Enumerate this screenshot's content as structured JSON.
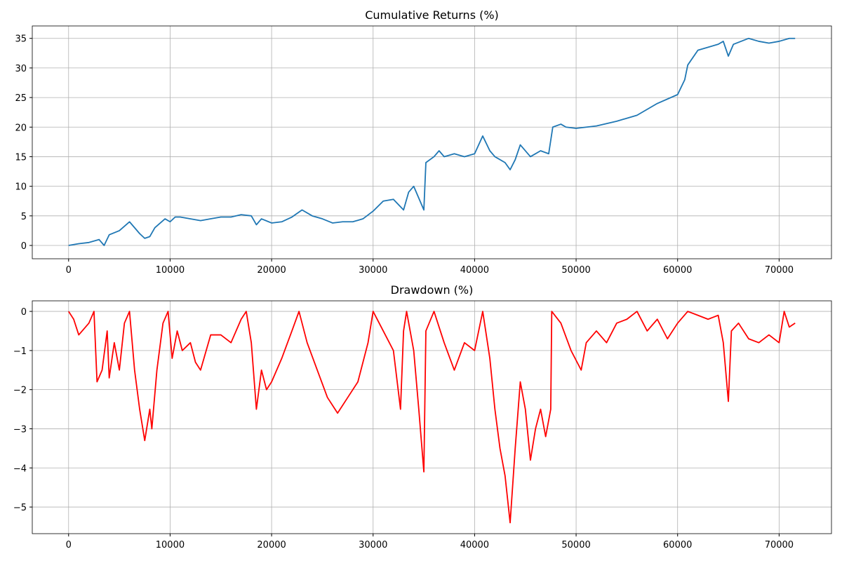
{
  "chart_data": [
    {
      "type": "line",
      "title": "Cumulative Returns (%)",
      "color": "#1f77b4",
      "grid": true,
      "xlim": [
        -3579,
        75159
      ],
      "ylim": [
        -2.25,
        37.1
      ],
      "xticks": [
        0,
        10000,
        20000,
        30000,
        40000,
        50000,
        60000,
        70000
      ],
      "yticks": [
        0,
        5,
        10,
        15,
        20,
        25,
        30,
        35
      ],
      "x": [
        0,
        1000,
        2000,
        3000,
        3500,
        4000,
        5000,
        6000,
        7000,
        7500,
        8000,
        8500,
        9500,
        10000,
        10500,
        11000,
        13000,
        14000,
        15000,
        16000,
        17000,
        18000,
        18500,
        19000,
        20000,
        21000,
        22000,
        23000,
        24000,
        25000,
        26000,
        27000,
        28000,
        29000,
        30000,
        31000,
        32000,
        33000,
        33500,
        34000,
        35000,
        35200,
        36000,
        36500,
        37000,
        38000,
        39000,
        40000,
        40800,
        41500,
        42000,
        43000,
        43500,
        44000,
        44500,
        45500,
        46500,
        47300,
        47700,
        48500,
        49000,
        50000,
        52000,
        54000,
        56000,
        58000,
        60000,
        60700,
        61000,
        62000,
        64000,
        64500,
        65000,
        65500,
        67000,
        68000,
        69000,
        70000,
        71000,
        71580
      ],
      "values": [
        0,
        0.3,
        0.5,
        1,
        0,
        1.8,
        2.5,
        4,
        2,
        1.2,
        1.5,
        3,
        4.5,
        4,
        4.8,
        4.8,
        4.2,
        4.5,
        4.8,
        4.8,
        5.2,
        5,
        3.5,
        4.5,
        3.8,
        4,
        4.8,
        6,
        5,
        4.5,
        3.8,
        4,
        4,
        4.5,
        5.8,
        7.5,
        7.8,
        6,
        9,
        10,
        6,
        14,
        15,
        16,
        15,
        15.5,
        15,
        15.5,
        18.5,
        16,
        15,
        14,
        12.8,
        14.5,
        17,
        15,
        16,
        15.5,
        20,
        20.5,
        20,
        19.8,
        20.2,
        21,
        22,
        24,
        25.5,
        28,
        30.5,
        33,
        34,
        34.5,
        32,
        34,
        35,
        34.5,
        34.2,
        34.5,
        35,
        35
      ]
    },
    {
      "type": "line",
      "title": "Drawdown (%)",
      "color": "#ff0000",
      "grid": true,
      "xlim": [
        -3579,
        75159
      ],
      "ylim": [
        -5.68,
        0.27
      ],
      "xticks": [
        0,
        10000,
        20000,
        30000,
        40000,
        50000,
        60000,
        70000
      ],
      "yticks": [
        {
          "value": -5,
          "label": "−5"
        },
        {
          "value": -4,
          "label": "−4"
        },
        {
          "value": -3,
          "label": "−3"
        },
        {
          "value": -2,
          "label": "−2"
        },
        {
          "value": -1,
          "label": "−1"
        },
        0
      ],
      "x": [
        0,
        500,
        1000,
        2000,
        2500,
        2800,
        3300,
        3800,
        4000,
        4500,
        5000,
        5500,
        6000,
        6500,
        7000,
        7500,
        8000,
        8200,
        8700,
        9300,
        9800,
        10200,
        10700,
        11200,
        12000,
        12500,
        13000,
        14000,
        15000,
        16000,
        17000,
        17500,
        18000,
        18500,
        19000,
        19500,
        20000,
        21000,
        22000,
        22700,
        23500,
        24500,
        25500,
        26500,
        27500,
        28500,
        29500,
        30000,
        31000,
        32000,
        32700,
        33000,
        33300,
        34000,
        34500,
        35000,
        35200,
        36000,
        37000,
        38000,
        39000,
        40000,
        40800,
        41500,
        42000,
        42500,
        43000,
        43500,
        44000,
        44500,
        45000,
        45500,
        46000,
        46500,
        47000,
        47500,
        47600,
        48500,
        49500,
        50500,
        51000,
        52000,
        53000,
        54000,
        55000,
        56000,
        57000,
        58000,
        59000,
        60000,
        61000,
        62000,
        63000,
        64000,
        64500,
        65000,
        65300,
        66000,
        67000,
        68000,
        69000,
        70000,
        70500,
        71000,
        71580
      ],
      "values": [
        0,
        -0.2,
        -0.6,
        -0.3,
        0,
        -1.8,
        -1.5,
        -0.5,
        -1.7,
        -0.8,
        -1.5,
        -0.3,
        0,
        -1.5,
        -2.5,
        -3.3,
        -2.5,
        -3,
        -1.5,
        -0.3,
        0,
        -1.2,
        -0.5,
        -1,
        -0.8,
        -1.3,
        -1.5,
        -0.6,
        -0.6,
        -0.8,
        -0.2,
        0,
        -0.8,
        -2.5,
        -1.5,
        -2,
        -1.8,
        -1.2,
        -0.5,
        0,
        -0.8,
        -1.5,
        -2.2,
        -2.6,
        -2.2,
        -1.8,
        -0.8,
        0,
        -0.5,
        -1,
        -2.5,
        -0.5,
        0,
        -1,
        -2.5,
        -4.1,
        -0.5,
        0,
        -0.8,
        -1.5,
        -0.8,
        -1,
        0,
        -1.2,
        -2.5,
        -3.5,
        -4.2,
        -5.4,
        -3.5,
        -1.8,
        -2.5,
        -3.8,
        -3,
        -2.5,
        -3.2,
        -2.5,
        0,
        -0.3,
        -1,
        -1.5,
        -0.8,
        -0.5,
        -0.8,
        -0.3,
        -0.2,
        0,
        -0.5,
        -0.2,
        -0.7,
        -0.3,
        0,
        -0.1,
        -0.2,
        -0.1,
        -0.8,
        -2.3,
        -0.5,
        -0.3,
        -0.7,
        -0.8,
        -0.6,
        -0.8,
        0,
        -0.4,
        -0.3
      ]
    }
  ]
}
